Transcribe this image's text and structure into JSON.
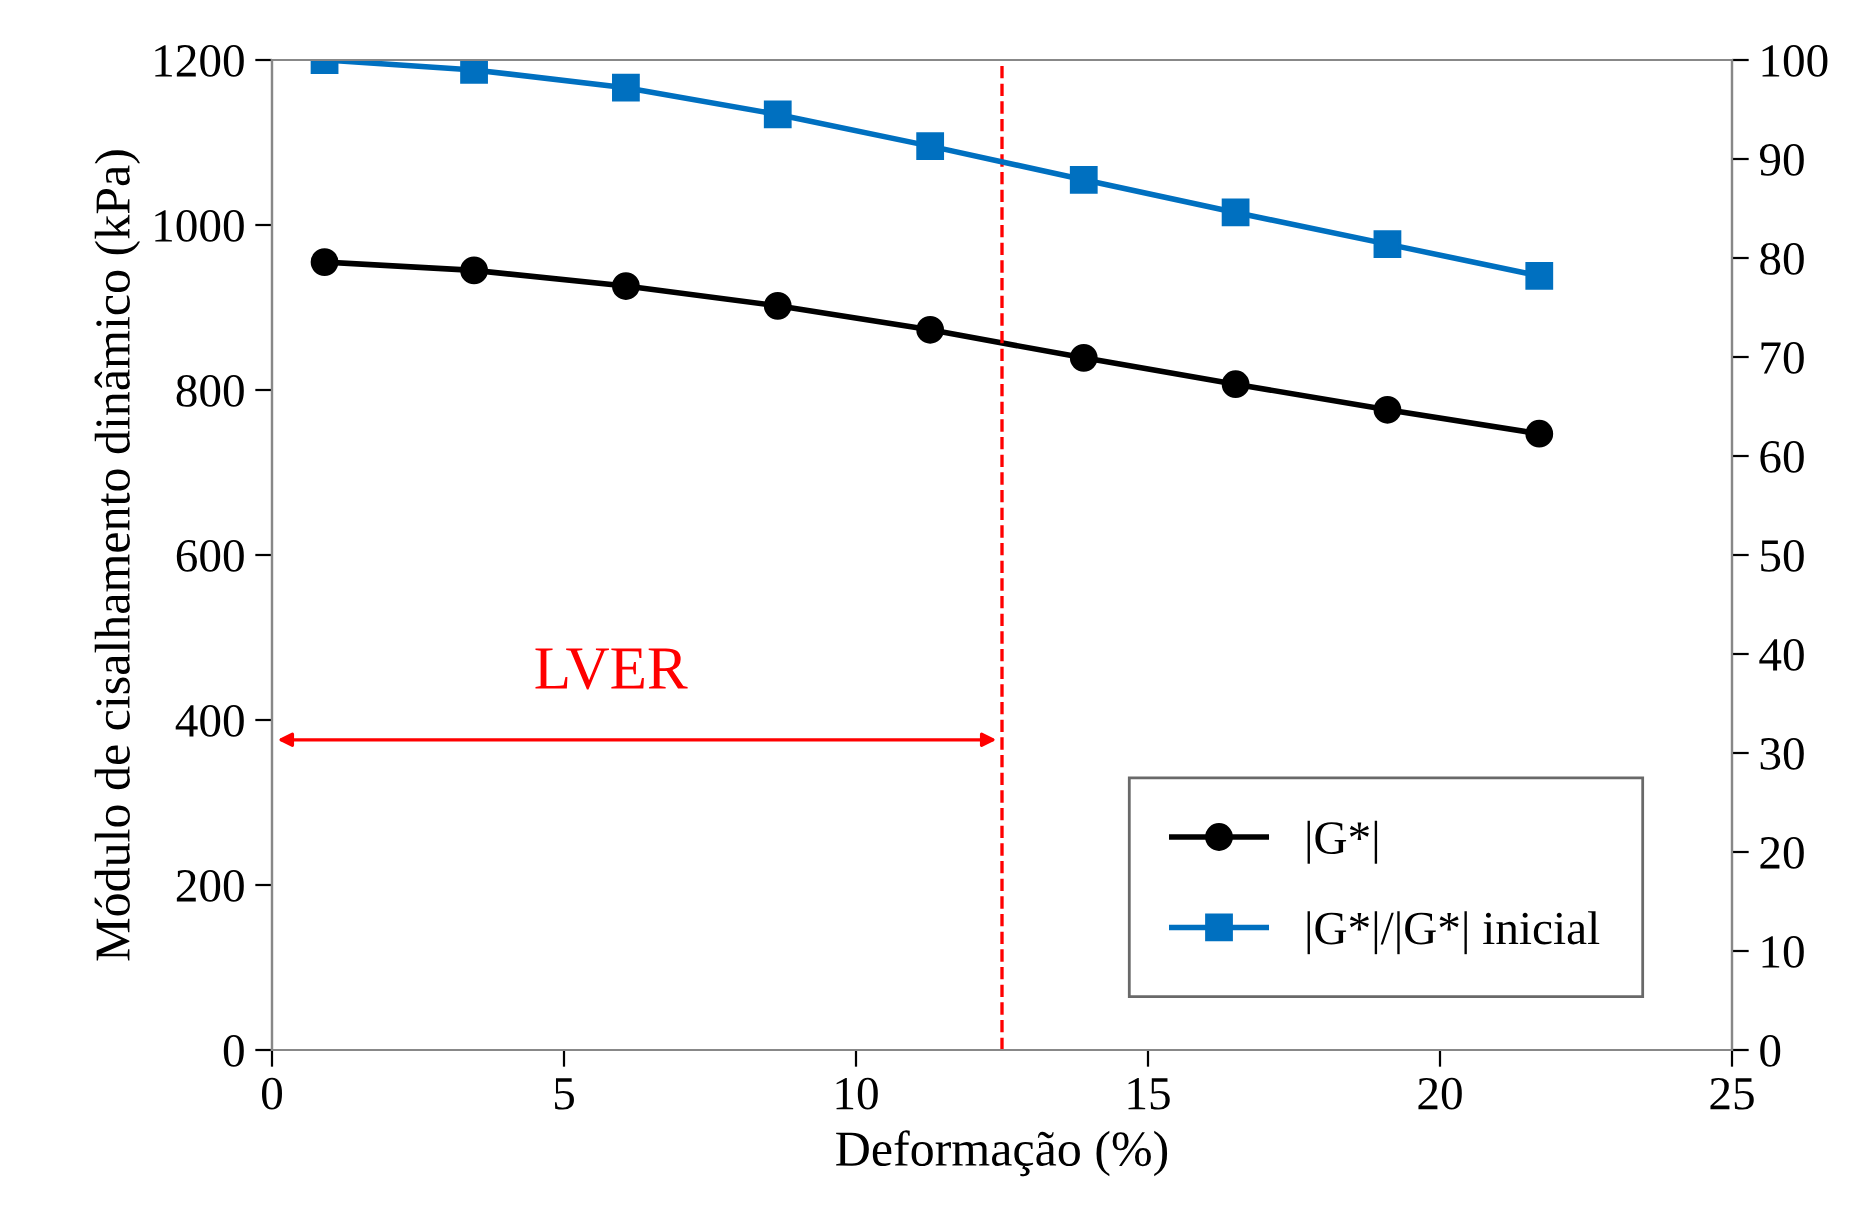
{
  "chart_data": {
    "type": "line",
    "xlabel": "Deformação (%)",
    "ylabel": "Módulo de cisalhamento dinâmico (kPa)",
    "x": [
      0.9,
      3.46,
      6.06,
      8.66,
      11.27,
      13.9,
      16.5,
      19.1,
      21.7
    ],
    "series": [
      {
        "name": "|G*|",
        "color": "#000000",
        "marker": "circle",
        "values": [
          955,
          945,
          926,
          902,
          873,
          839,
          807,
          776,
          747
        ]
      },
      {
        "name": "|G*|/|G*| inicial",
        "color": "#0070c0",
        "marker": "square",
        "axis": "y2",
        "values": [
          100,
          99,
          97.2,
          94.5,
          91.3,
          87.9,
          84.6,
          81.4,
          78.2
        ]
      }
    ],
    "xlim": [
      0,
      25
    ],
    "xticks": [
      0,
      5,
      10,
      15,
      20,
      25
    ],
    "ylim": [
      0,
      1200
    ],
    "yticks": [
      0,
      200,
      400,
      600,
      800,
      1000,
      1200
    ],
    "y2lim": [
      0,
      100
    ],
    "y2ticks": [
      0,
      10,
      20,
      30,
      40,
      50,
      60,
      70,
      80,
      90,
      100
    ],
    "ref_lines": [
      {
        "axis": "x",
        "value": 12.5,
        "color": "#ff0000",
        "line_style": "dashed"
      }
    ],
    "annotations": [
      "LVER"
    ],
    "grid": false,
    "legend": "bottom right",
    "line_style": "solid"
  }
}
